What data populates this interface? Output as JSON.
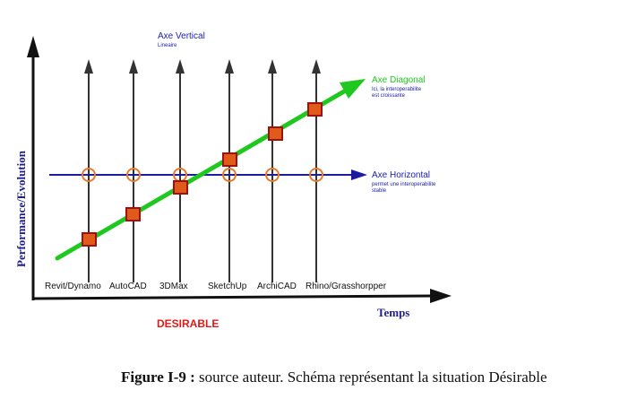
{
  "axes": {
    "y_label": "Performance/Evolution",
    "x_label": "Temps"
  },
  "vertical_axis": {
    "title": "Axe Vertical",
    "note": "Lineaire"
  },
  "diagonal_axis": {
    "title": "Axe Diagonal",
    "note_line1": "Ici, la interoperabilite",
    "note_line2": "est croissante"
  },
  "horizontal_axis": {
    "title": "Axe Horizontal",
    "note_line1": "permet une interoperabilite",
    "note_line2": "stable"
  },
  "software": [
    "Revit/Dynamo",
    "AutoCAD",
    "3DMax",
    "SketchUp",
    "ArchiCAD",
    "Rhino/Grasshorpper"
  ],
  "situation_label": "DESIRABLE",
  "caption": {
    "prefix": "Figure I-9 :",
    "text": " source auteur. Schéma représentant la situation Désirable"
  },
  "colors": {
    "axis": "#111111",
    "vertical_arrows": "#333333",
    "horizontal_line": "#1c1ca0",
    "diagonal": "#1ec81e",
    "marker_fill": "#e05a1a",
    "marker_border": "#a01010",
    "circle": "#e87a2a",
    "y_label": "#1e1e8c",
    "situation_label": "#e01818",
    "note_blue": "#2020b0"
  }
}
